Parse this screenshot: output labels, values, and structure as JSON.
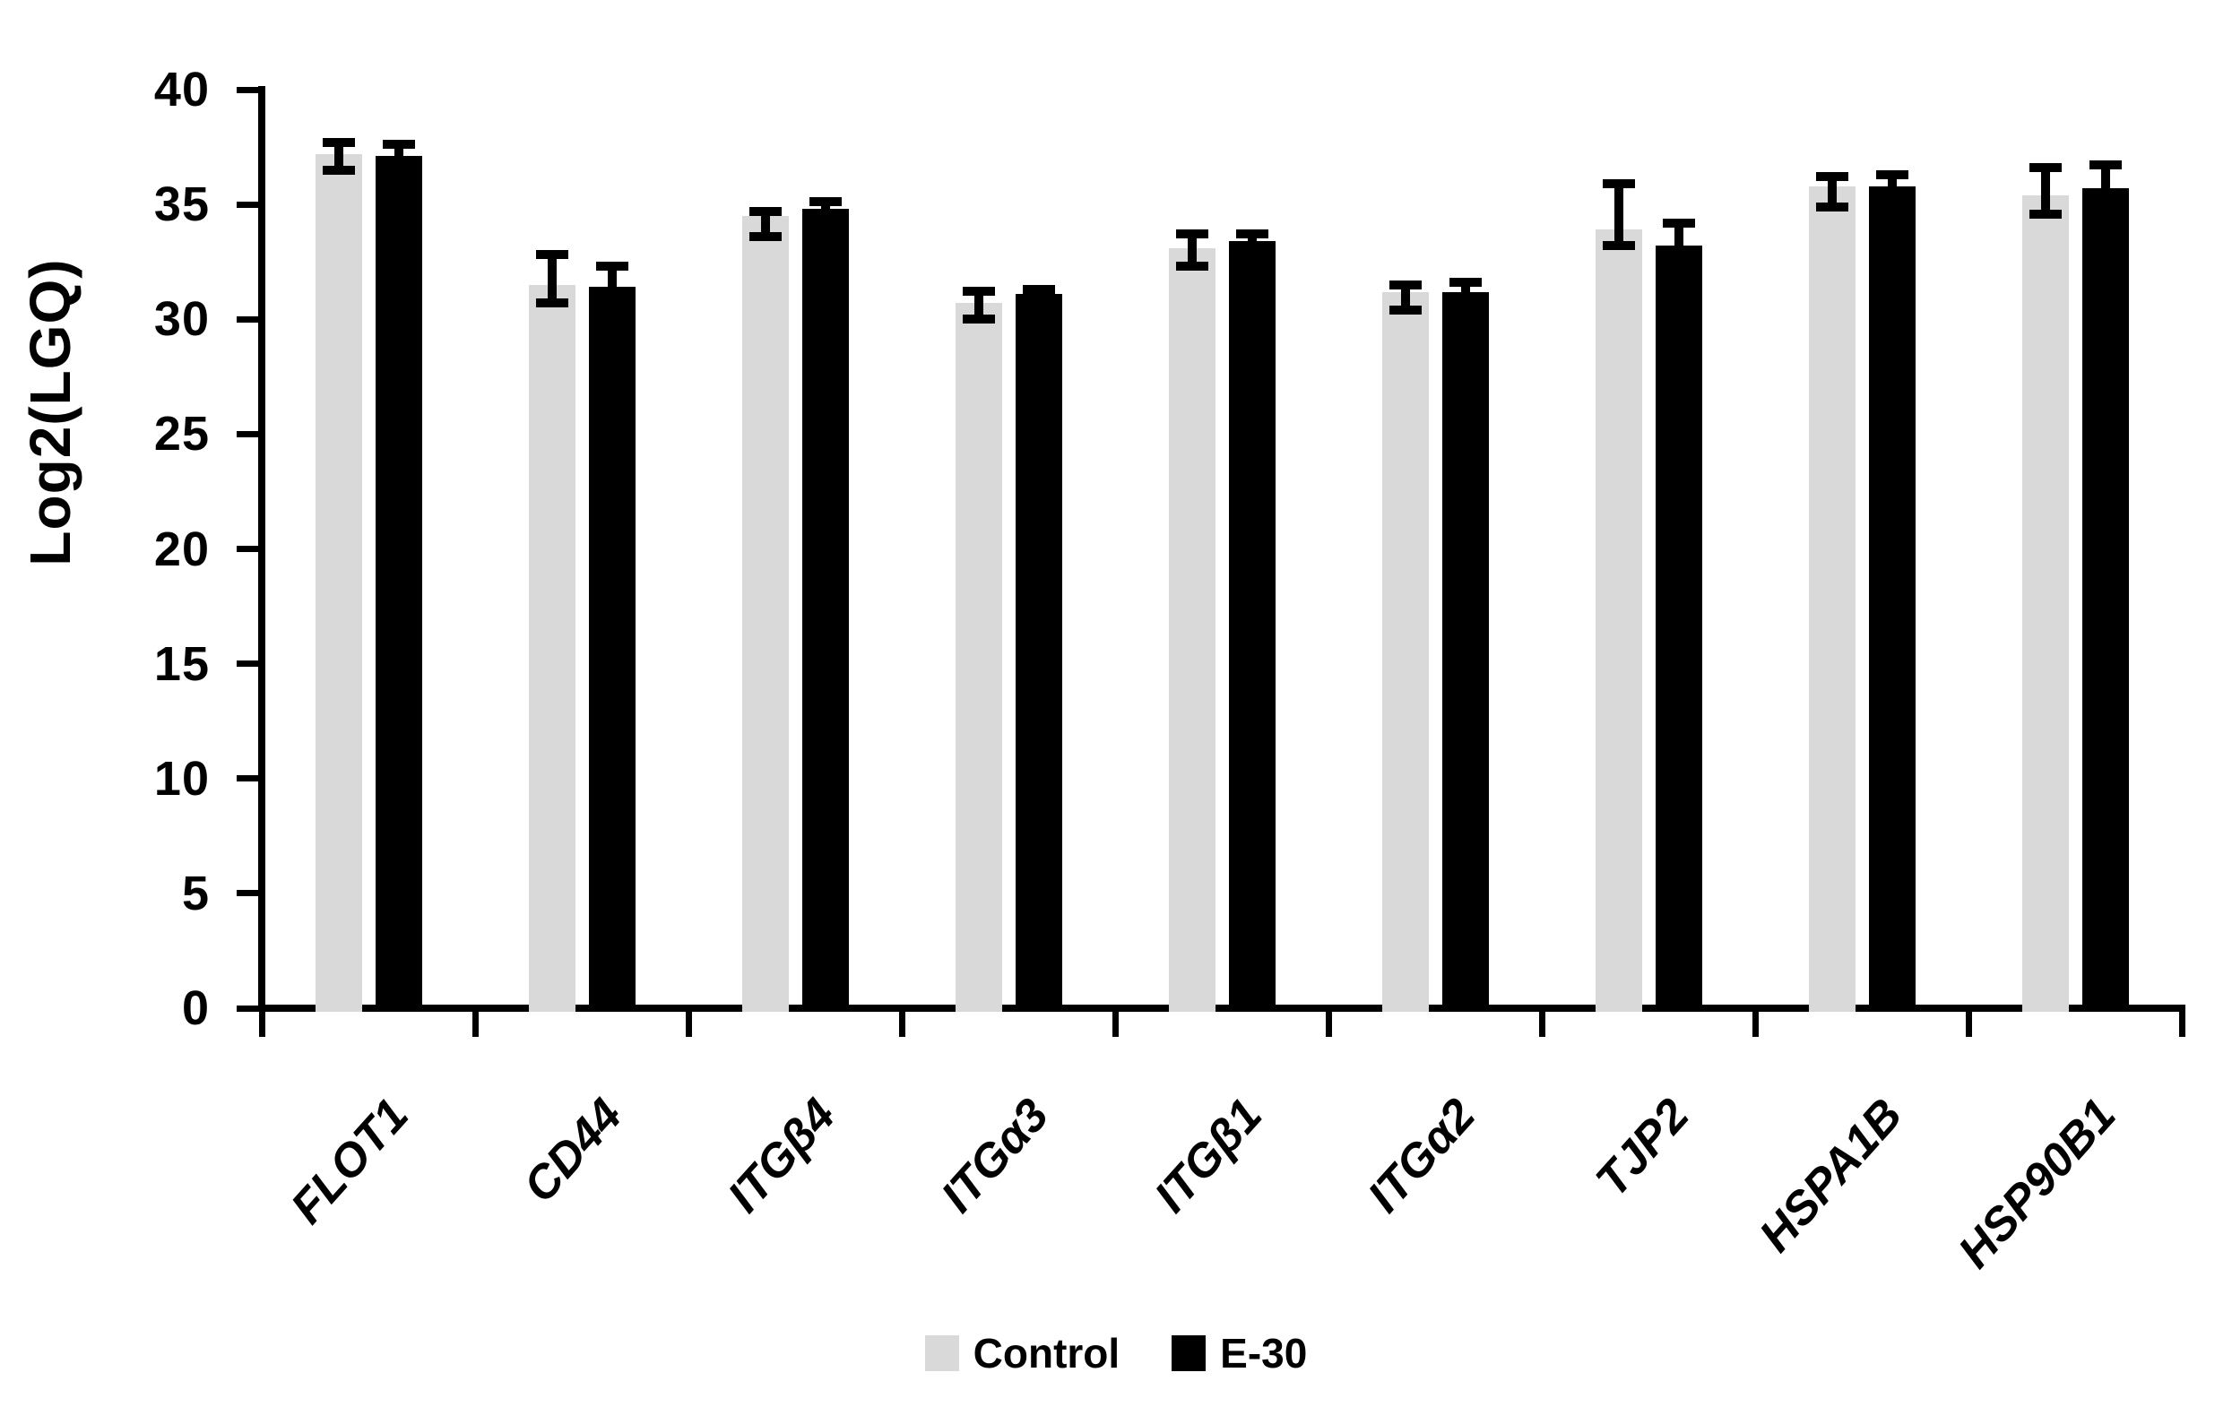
{
  "chart_data": {
    "type": "bar",
    "title": "",
    "xlabel": "",
    "ylabel": "Log2(LGQ)",
    "ylim": [
      0,
      40
    ],
    "yticks": [
      0,
      5,
      10,
      15,
      20,
      25,
      30,
      35,
      40
    ],
    "grid": false,
    "legend_position": "bottom-center",
    "categories": [
      "FLOT1",
      "CD44",
      "ITGβ4",
      "ITGα3",
      "ITGβ1",
      "ITGα2",
      "TJP2",
      "HSPA1B",
      "HSP90B1"
    ],
    "series": [
      {
        "name": "Control",
        "color": "#d9d9d9",
        "values": [
          37.2,
          31.5,
          34.5,
          30.7,
          33.1,
          31.2,
          33.9,
          35.8,
          35.4
        ],
        "error_hi": [
          37.9,
          33.0,
          34.9,
          31.4,
          33.9,
          31.7,
          36.1,
          36.4,
          36.8
        ],
        "error_lo": [
          36.3,
          30.5,
          33.4,
          29.8,
          32.1,
          30.2,
          33.0,
          34.7,
          34.4
        ]
      },
      {
        "name": "E-30",
        "color": "#000000",
        "values": [
          37.1,
          31.4,
          34.8,
          31.1,
          33.4,
          31.2,
          33.2,
          35.8,
          35.7
        ],
        "error_hi": [
          37.8,
          32.5,
          35.3,
          31.5,
          33.9,
          31.8,
          34.4,
          36.5,
          36.9
        ],
        "error_lo": [
          36.4,
          30.3,
          34.3,
          30.7,
          32.9,
          30.6,
          32.0,
          35.1,
          34.5
        ]
      }
    ]
  },
  "legend": {
    "items": [
      {
        "label": "Control",
        "color": "#d9d9d9"
      },
      {
        "label": "E-30",
        "color": "#000000"
      }
    ]
  },
  "colors": {
    "axis": "#000000",
    "background": "#ffffff",
    "control_bar": "#d9d9d9",
    "e30_bar": "#000000"
  }
}
